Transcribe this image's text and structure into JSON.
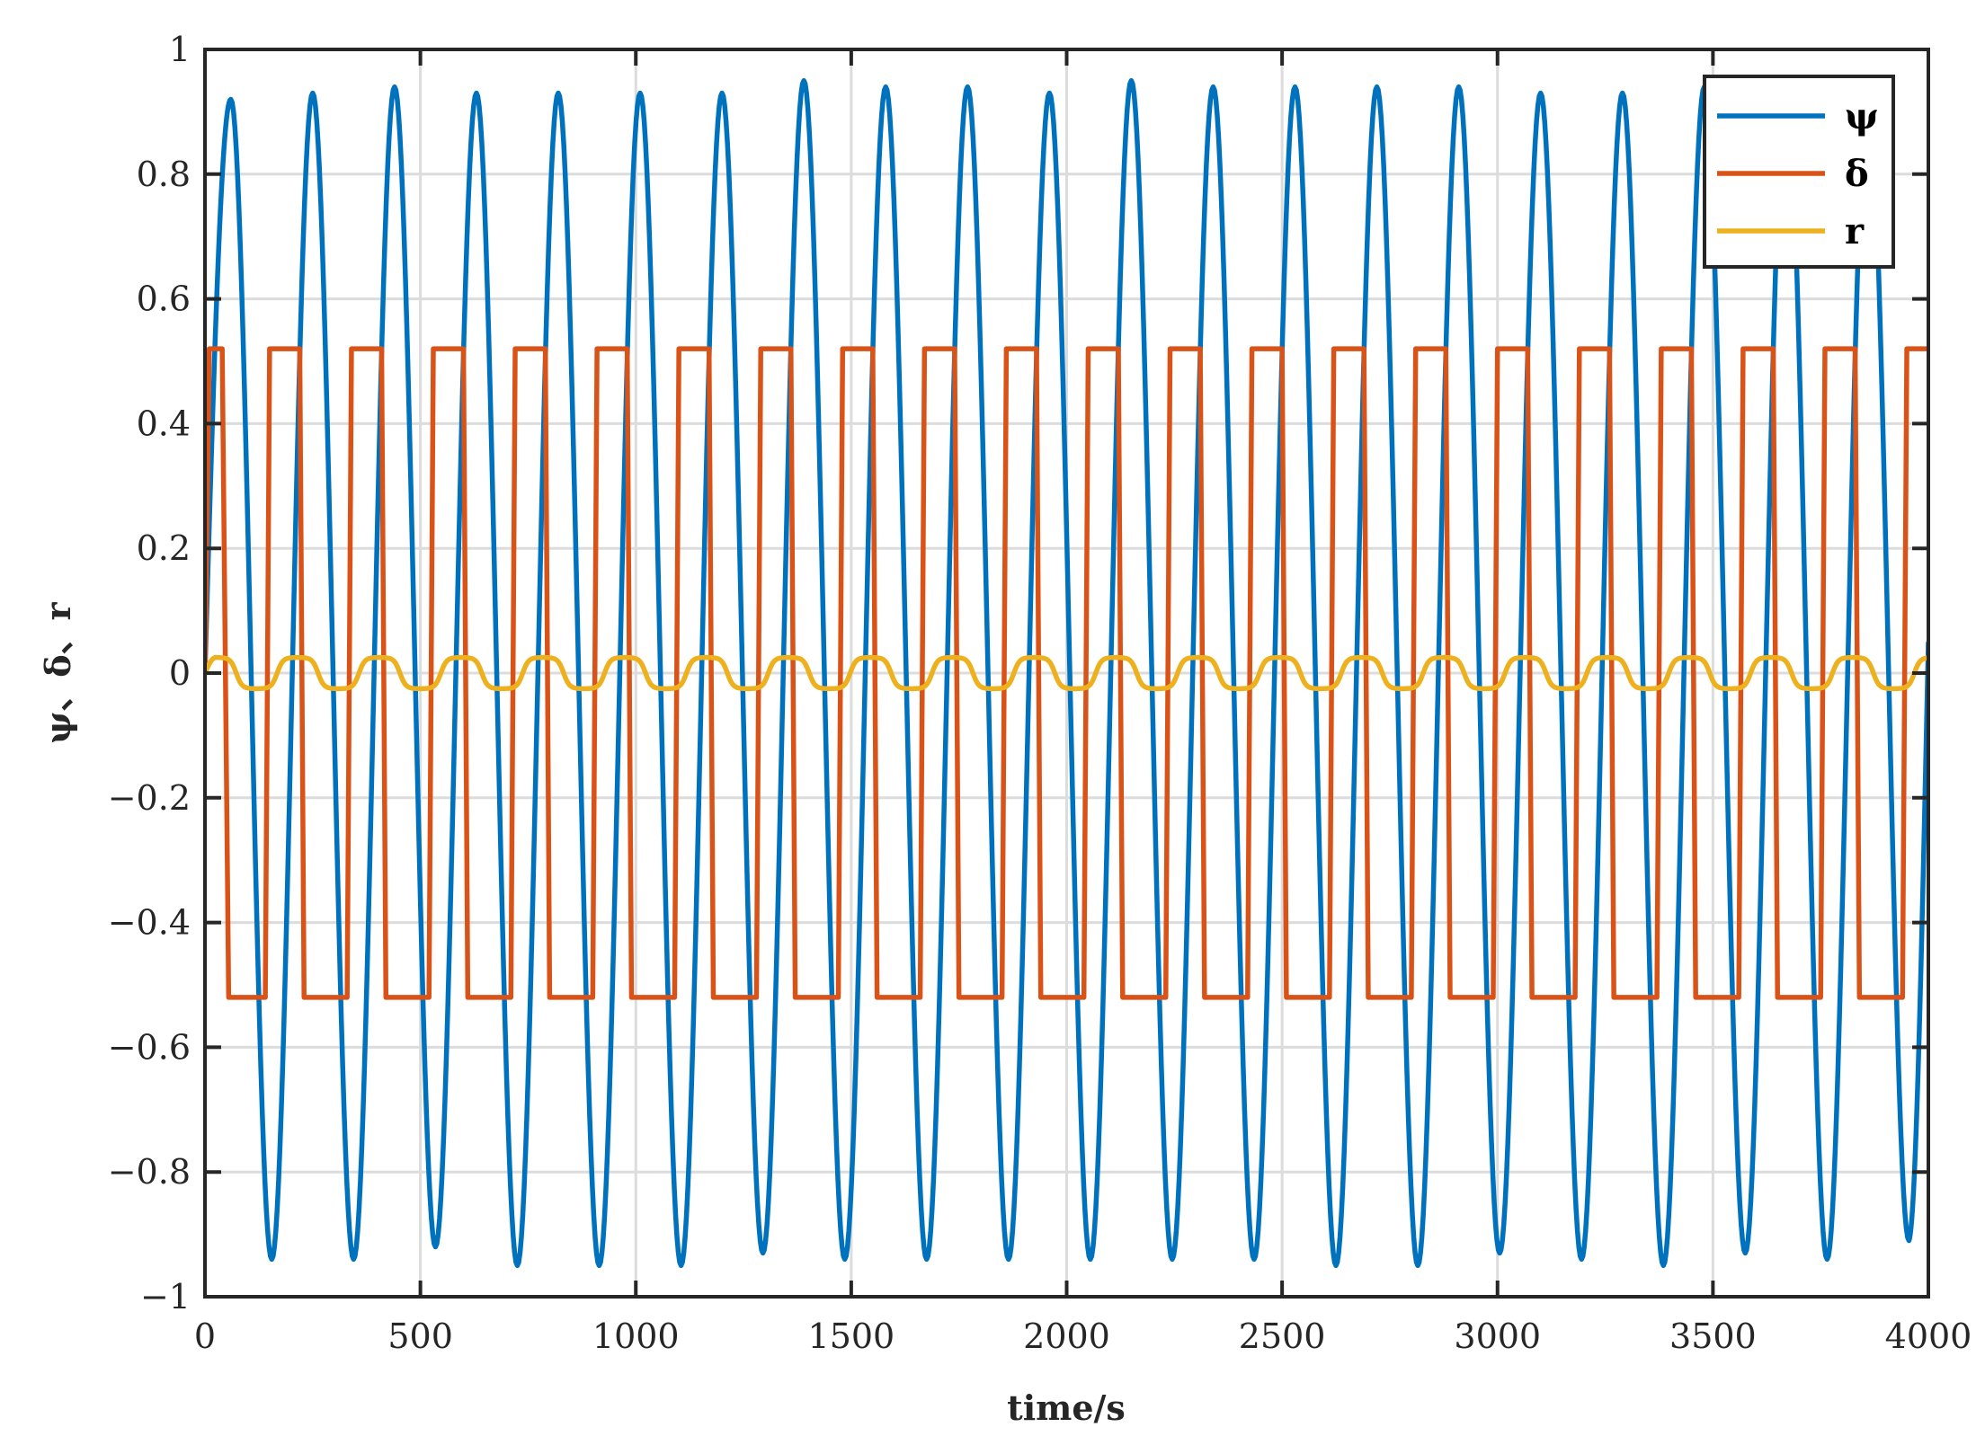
{
  "chart_data": {
    "type": "line",
    "title": "",
    "xlabel": "time/s",
    "ylabel": "ψ、δ、r",
    "xlim": [
      0,
      4000
    ],
    "ylim": [
      -1,
      1
    ],
    "xticks": [
      0,
      500,
      1000,
      1500,
      2000,
      2500,
      3000,
      3500,
      4000
    ],
    "xtick_labels": [
      "0",
      "500",
      "1000",
      "1500",
      "2000",
      "2500",
      "3000",
      "3500",
      "4000"
    ],
    "yticks": [
      -1,
      -0.8,
      -0.6,
      -0.4,
      -0.2,
      0,
      0.2,
      0.4,
      0.6,
      0.8,
      1
    ],
    "ytick_labels": [
      "−1",
      "−0.8",
      "−0.6",
      "−0.4",
      "−0.2",
      "0",
      "0.2",
      "0.4",
      "0.6",
      "0.8",
      "1"
    ],
    "grid": true,
    "legend_position": "top-right",
    "series": [
      {
        "name": "ψ",
        "color": "#0072BD",
        "shape": "sine",
        "period": 190,
        "peaks": [
          [
            60,
            0.92
          ],
          [
            250,
            0.93
          ],
          [
            440,
            0.94
          ],
          [
            630,
            0.93
          ],
          [
            820,
            0.93
          ],
          [
            1010,
            0.93
          ],
          [
            1200,
            0.93
          ],
          [
            1390,
            0.95
          ],
          [
            1580,
            0.94
          ],
          [
            1770,
            0.94
          ],
          [
            1960,
            0.93
          ],
          [
            2150,
            0.95
          ],
          [
            2340,
            0.94
          ],
          [
            2530,
            0.94
          ],
          [
            2720,
            0.94
          ],
          [
            2910,
            0.94
          ],
          [
            3100,
            0.93
          ],
          [
            3290,
            0.93
          ],
          [
            3480,
            0.94
          ],
          [
            3670,
            0.94
          ],
          [
            3860,
            0.93
          ]
        ],
        "troughs": [
          [
            155,
            -0.94
          ],
          [
            345,
            -0.94
          ],
          [
            535,
            -0.92
          ],
          [
            725,
            -0.95
          ],
          [
            915,
            -0.95
          ],
          [
            1105,
            -0.95
          ],
          [
            1295,
            -0.93
          ],
          [
            1485,
            -0.94
          ],
          [
            1675,
            -0.94
          ],
          [
            1865,
            -0.94
          ],
          [
            2055,
            -0.94
          ],
          [
            2245,
            -0.94
          ],
          [
            2435,
            -0.94
          ],
          [
            2625,
            -0.95
          ],
          [
            2815,
            -0.95
          ],
          [
            3005,
            -0.93
          ],
          [
            3195,
            -0.94
          ],
          [
            3385,
            -0.95
          ],
          [
            3575,
            -0.93
          ],
          [
            3765,
            -0.94
          ],
          [
            3955,
            -0.91
          ]
        ]
      },
      {
        "name": "δ",
        "color": "#D95319",
        "shape": "square",
        "high": 0.52,
        "low": -0.52,
        "ramp": 10,
        "transitions": [
          [
            0,
            0
          ],
          [
            10,
            0.52
          ],
          [
            40,
            0.52
          ],
          [
            55,
            -0.52
          ],
          [
            140,
            -0.52
          ],
          [
            150,
            0.52
          ],
          [
            220,
            0.52
          ],
          [
            230,
            -0.52
          ],
          [
            330,
            -0.52
          ],
          [
            340,
            0.52
          ],
          [
            410,
            0.52
          ],
          [
            420,
            -0.52
          ],
          [
            520,
            -0.52
          ],
          [
            530,
            0.52
          ],
          [
            600,
            0.52
          ],
          [
            610,
            -0.52
          ],
          [
            710,
            -0.52
          ],
          [
            720,
            0.52
          ],
          [
            790,
            0.52
          ],
          [
            800,
            -0.52
          ],
          [
            900,
            -0.52
          ],
          [
            910,
            0.52
          ],
          [
            980,
            0.52
          ],
          [
            990,
            -0.52
          ],
          [
            1090,
            -0.52
          ],
          [
            1100,
            0.52
          ],
          [
            1170,
            0.52
          ],
          [
            1180,
            -0.52
          ],
          [
            1280,
            -0.52
          ],
          [
            1290,
            0.52
          ],
          [
            1360,
            0.52
          ],
          [
            1370,
            -0.52
          ],
          [
            1470,
            -0.52
          ],
          [
            1480,
            0.52
          ],
          [
            1550,
            0.52
          ],
          [
            1560,
            -0.52
          ],
          [
            1660,
            -0.52
          ],
          [
            1670,
            0.52
          ],
          [
            1740,
            0.52
          ],
          [
            1750,
            -0.52
          ],
          [
            1850,
            -0.52
          ],
          [
            1860,
            0.52
          ],
          [
            1930,
            0.52
          ],
          [
            1940,
            -0.52
          ],
          [
            2040,
            -0.52
          ],
          [
            2050,
            0.52
          ],
          [
            2120,
            0.52
          ],
          [
            2130,
            -0.52
          ],
          [
            2230,
            -0.52
          ],
          [
            2240,
            0.52
          ],
          [
            2310,
            0.52
          ],
          [
            2320,
            -0.52
          ],
          [
            2420,
            -0.52
          ],
          [
            2430,
            0.52
          ],
          [
            2500,
            0.52
          ],
          [
            2510,
            -0.52
          ],
          [
            2610,
            -0.52
          ],
          [
            2620,
            0.52
          ],
          [
            2690,
            0.52
          ],
          [
            2700,
            -0.52
          ],
          [
            2800,
            -0.52
          ],
          [
            2810,
            0.52
          ],
          [
            2880,
            0.52
          ],
          [
            2890,
            -0.52
          ],
          [
            2990,
            -0.52
          ],
          [
            3000,
            0.52
          ],
          [
            3070,
            0.52
          ],
          [
            3080,
            -0.52
          ],
          [
            3180,
            -0.52
          ],
          [
            3190,
            0.52
          ],
          [
            3260,
            0.52
          ],
          [
            3270,
            -0.52
          ],
          [
            3370,
            -0.52
          ],
          [
            3380,
            0.52
          ],
          [
            3450,
            0.52
          ],
          [
            3460,
            -0.52
          ],
          [
            3560,
            -0.52
          ],
          [
            3570,
            0.52
          ],
          [
            3640,
            0.52
          ],
          [
            3650,
            -0.52
          ],
          [
            3750,
            -0.52
          ],
          [
            3760,
            0.52
          ],
          [
            3830,
            0.52
          ],
          [
            3840,
            -0.52
          ],
          [
            3940,
            -0.52
          ],
          [
            3950,
            0.52
          ],
          [
            4000,
            0.52
          ]
        ]
      },
      {
        "name": "r",
        "color": "#EDB120",
        "shape": "smoothed-square",
        "amplitude": 0.025,
        "period": 190,
        "phase_peak": 25,
        "peaks_x": [
          25,
          215,
          405,
          595,
          785,
          975,
          1165,
          1355,
          1545,
          1735,
          1925,
          2115,
          2305,
          2495,
          2685,
          2875,
          3065,
          3255,
          3445,
          3635,
          3825,
          4000
        ]
      }
    ]
  }
}
